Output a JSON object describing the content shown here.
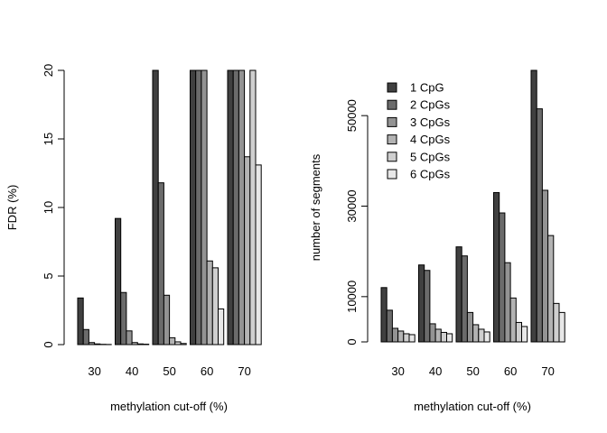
{
  "chart_data": [
    {
      "type": "bar",
      "categories": [
        "30",
        "40",
        "50",
        "60",
        "70"
      ],
      "series": [
        {
          "name": "1 CpG",
          "color": "#404040",
          "values": [
            3.4,
            9.2,
            20.0,
            20.0,
            20.0
          ]
        },
        {
          "name": "2 CpGs",
          "color": "#6b6b6b",
          "values": [
            1.1,
            3.8,
            11.8,
            20.0,
            20.0
          ]
        },
        {
          "name": "3 CpGs",
          "color": "#939393",
          "values": [
            0.15,
            1.0,
            3.6,
            20.0,
            20.0
          ]
        },
        {
          "name": "4 CpGs",
          "color": "#b3b3b3",
          "values": [
            0.05,
            0.15,
            0.5,
            6.1,
            13.7
          ]
        },
        {
          "name": "5 CpGs",
          "color": "#cfcfcf",
          "values": [
            0.02,
            0.05,
            0.2,
            5.6,
            20.0
          ]
        },
        {
          "name": "6 CpGs",
          "color": "#e8e8e8",
          "values": [
            0.01,
            0.03,
            0.08,
            2.6,
            13.1
          ]
        }
      ],
      "xlabel": "methylation cut-off (%)",
      "ylabel": "FDR (%)",
      "ylim": [
        0,
        20
      ],
      "yticks": [
        0,
        5,
        10,
        15,
        20
      ],
      "legend": "none",
      "grid": false
    },
    {
      "type": "bar",
      "categories": [
        "30",
        "40",
        "50",
        "60",
        "70"
      ],
      "series": [
        {
          "name": "1 CpG",
          "color": "#404040",
          "values": [
            12000,
            17000,
            21000,
            33000,
            60000
          ]
        },
        {
          "name": "2 CpGs",
          "color": "#6b6b6b",
          "values": [
            7000,
            15800,
            19000,
            28500,
            51500
          ]
        },
        {
          "name": "3 CpGs",
          "color": "#939393",
          "values": [
            3000,
            4000,
            6500,
            17500,
            33500
          ]
        },
        {
          "name": "4 CpGs",
          "color": "#b3b3b3",
          "values": [
            2400,
            2800,
            3800,
            9700,
            23500
          ]
        },
        {
          "name": "5 CpGs",
          "color": "#cfcfcf",
          "values": [
            1800,
            2100,
            2800,
            4300,
            8500
          ]
        },
        {
          "name": "6 CpGs",
          "color": "#e8e8e8",
          "values": [
            1600,
            1800,
            2200,
            3400,
            6500
          ]
        }
      ],
      "xlabel": "methylation cut-off (%)",
      "ylabel": "number of segments",
      "ylim": [
        0,
        60000
      ],
      "yticks": [
        0,
        10000,
        30000,
        50000
      ],
      "legend": "top-left",
      "grid": false
    }
  ]
}
